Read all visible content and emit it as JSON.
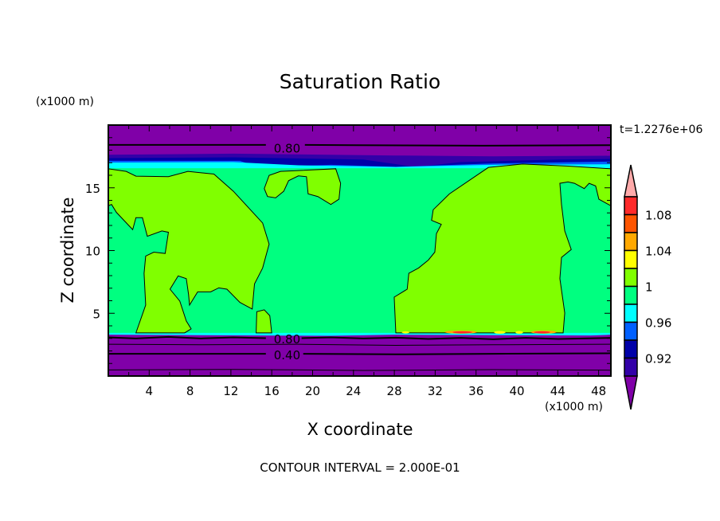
{
  "chart_data": {
    "type": "heatmap",
    "title": "Saturation Ratio",
    "xlabel": "X coordinate",
    "ylabel": "Z coordinate",
    "x_unit_label": "(x1000 m)",
    "y_unit_label": "(x1000 m)",
    "time_label": "t=1.2276e+06",
    "footer": "CONTOUR INTERVAL = 2.000E-01",
    "xlim": [
      0,
      49.2
    ],
    "ylim": [
      0,
      20
    ],
    "xticks": [
      4,
      8,
      12,
      16,
      20,
      24,
      28,
      32,
      36,
      40,
      44,
      48
    ],
    "yticks": [
      5,
      10,
      15
    ],
    "contour_labels": [
      {
        "text": "0.80",
        "x": 17.5,
        "z": 18.2
      },
      {
        "text": "0.80",
        "x": 17.5,
        "z": 3.0
      },
      {
        "text": "0.40",
        "x": 17.5,
        "z": 1.7
      }
    ],
    "colorbar": {
      "levels": [
        0.9,
        0.92,
        0.94,
        0.96,
        0.98,
        1.0,
        1.02,
        1.04,
        1.06,
        1.08,
        1.1
      ],
      "tick_labels": [
        "1.08",
        "1.04",
        "1",
        "0.96",
        "0.92"
      ],
      "tick_values": [
        1.08,
        1.04,
        1.0,
        0.96,
        0.92
      ],
      "colors": [
        "#3300a8",
        "#0000a8",
        "#0060ff",
        "#00ffff",
        "#00ff80",
        "#80ff00",
        "#ffff00",
        "#ffa800",
        "#ff5500",
        "#ff2a2a"
      ],
      "under_color": "#8000a8",
      "over_color": "#ffaaaa"
    },
    "regions": {
      "background_value": "below 0.90 (purple)",
      "main_value": "0.98-1.00 (green)",
      "blob_value": "1.00-1.02 (yellow-green)"
    }
  }
}
